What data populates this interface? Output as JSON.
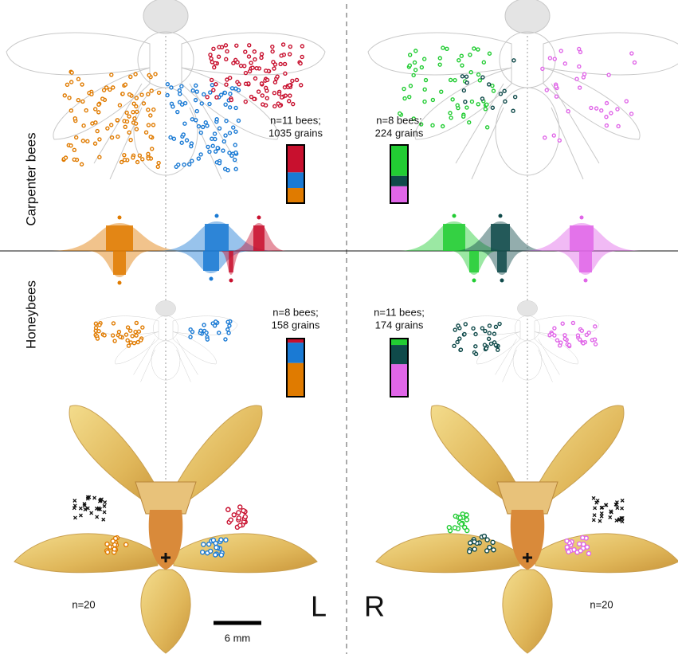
{
  "labels": {
    "row_top": "Carpenter bees",
    "row_bottom": "Honeybees",
    "left": "L",
    "right": "R",
    "scale": "6 mm"
  },
  "bees": [
    {
      "n": "n=11 bees;",
      "grains": "1035 grains",
      "segments": [
        {
          "color": "#e07b00",
          "value": 26
        },
        {
          "color": "#1a7ad4",
          "value": 27
        },
        {
          "color": "#c8102e",
          "value": 47
        }
      ]
    },
    {
      "n": "n=8 bees;",
      "grains": "224 grains",
      "segments": [
        {
          "color": "#e066e8",
          "value": 29
        },
        {
          "color": "#0f4a4a",
          "value": 18
        },
        {
          "color": "#22cc33",
          "value": 53
        }
      ]
    },
    {
      "n": "n=8 bees;",
      "grains": "158 grains",
      "segments": [
        {
          "color": "#e07b00",
          "value": 58
        },
        {
          "color": "#1a7ad4",
          "value": 35
        },
        {
          "color": "#c8102e",
          "value": 7
        }
      ]
    },
    {
      "n": "n=11 bees;",
      "grains": "174 grains",
      "segments": [
        {
          "color": "#e066e8",
          "value": 56
        },
        {
          "color": "#0f4a4a",
          "value": 33
        },
        {
          "color": "#22cc33",
          "value": 11
        }
      ]
    }
  ],
  "flowers": [
    {
      "n": "n=20"
    },
    {
      "n": "n=20"
    }
  ]
}
